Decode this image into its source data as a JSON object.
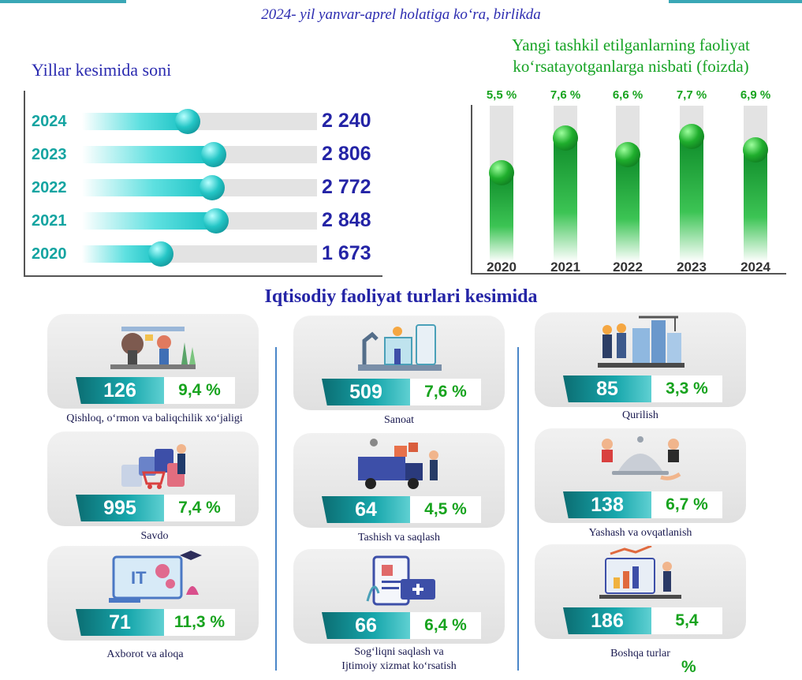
{
  "header": {
    "subtitle": "2024- yil yanvar-aprel holatiga ko‘ra, birlikda"
  },
  "chart_data": [
    {
      "type": "bar",
      "orientation": "horizontal",
      "title": "Yillar kesimida soni",
      "categories": [
        "2024",
        "2023",
        "2022",
        "2021",
        "2020"
      ],
      "values": [
        2240,
        2806,
        2772,
        2848,
        1673
      ],
      "value_labels": [
        "2 240",
        "2 806",
        "2 772",
        "2 848",
        "1 673"
      ],
      "xlim": [
        0,
        5000
      ],
      "colors": {
        "bar": "#18c1c3",
        "value": "#2424a6",
        "year": "#14a4a1"
      }
    },
    {
      "type": "bar",
      "orientation": "vertical",
      "title": "Yangi tashkil etilganlarning faoliyat ko‘rsatayotganlarga nisbati (foizda)",
      "categories": [
        "2020",
        "2021",
        "2022",
        "2023",
        "2024"
      ],
      "values": [
        5.5,
        7.6,
        6.6,
        7.7,
        6.9
      ],
      "value_labels": [
        "5,5 %",
        "7,6 %",
        "6,6 %",
        "7,7 %",
        "6,9 %"
      ],
      "ylim": [
        0,
        9.6
      ],
      "colors": {
        "bar": "#1fae2d",
        "value": "#17a31e"
      }
    }
  ],
  "section": {
    "title": "Iqtisodiy faoliyat turlari kesimida"
  },
  "categories": [
    {
      "name": "Qishloq, o‘rmon va baliqchilik xo‘jaligi",
      "count": "126",
      "share": "9,4 %",
      "icon": "farm-lab-icon"
    },
    {
      "name": "Savdo",
      "count": "995",
      "share": "7,4 %",
      "icon": "shopping-bags-icon"
    },
    {
      "name": "Axborot va aloqa",
      "count": "71",
      "share": "11,3 %",
      "icon": "it-monitor-icon"
    },
    {
      "name": "Sanoat",
      "count": "509",
      "share": "7,6 %",
      "icon": "factory-robot-icon"
    },
    {
      "name": "Tashish va saqlash",
      "count": "64",
      "share": "4,5 %",
      "icon": "delivery-truck-icon"
    },
    {
      "name_line1": "Sog‘liqni saqlash va",
      "name_line2": "Ijtimoiy xizmat ko‘rsatish",
      "count": "66",
      "share": "6,4 %",
      "icon": "medical-clipboard-icon"
    },
    {
      "name": "Qurilish",
      "count": "85",
      "share": "3,3 %",
      "icon": "construction-workers-icon"
    },
    {
      "name": "Yashash va ovqatlanish",
      "count": "138",
      "share": "6,7 %",
      "icon": "food-service-cloche-icon"
    },
    {
      "name": "Boshqa turlar",
      "count": "186",
      "share": "5,4",
      "share_suffix": "%",
      "icon": "business-chart-icon"
    }
  ],
  "colors": {
    "navy": "#2424a6",
    "teal": "#18a7ac",
    "green": "#17a31e",
    "divider": "#4a86c8"
  }
}
